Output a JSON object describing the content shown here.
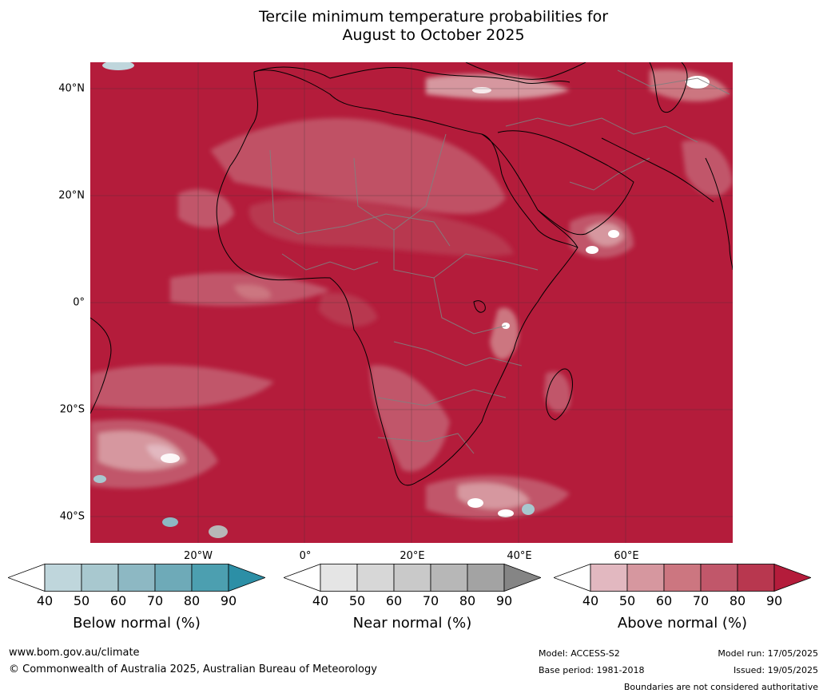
{
  "title_line1": "Tercile minimum temperature probabilities for",
  "title_line2": "August to October 2025",
  "map": {
    "lat_labels": [
      {
        "text": "40°N",
        "lat": 40
      },
      {
        "text": "20°N",
        "lat": 20
      },
      {
        "text": "0°",
        "lat": 0
      },
      {
        "text": "20°S",
        "lat": -20
      },
      {
        "text": "40°S",
        "lat": -40
      }
    ],
    "lon_labels": [
      {
        "text": "20°W",
        "lon": -20
      },
      {
        "text": "0°",
        "lon": 0
      },
      {
        "text": "20°E",
        "lon": 20
      },
      {
        "text": "40°E",
        "lon": 40
      },
      {
        "text": "60°E",
        "lon": 60
      }
    ],
    "extent": {
      "lon_min": -40,
      "lon_max": 80,
      "lat_min": -45,
      "lat_max": 45
    },
    "dominant_category": "above-normal-90"
  },
  "colorbars": [
    {
      "id": "below",
      "label": "Below normal (%)",
      "ticks": [
        "40",
        "50",
        "60",
        "70",
        "80",
        "90"
      ],
      "colors": [
        "#bfd6dc",
        "#a8c8cf",
        "#8db8c3",
        "#6eaab8",
        "#4c9fb0"
      ],
      "over_color": "#2c8fa6"
    },
    {
      "id": "near",
      "label": "Near normal (%)",
      "ticks": [
        "40",
        "50",
        "60",
        "70",
        "80",
        "90"
      ],
      "colors": [
        "#e5e5e5",
        "#d7d7d7",
        "#c9c9c9",
        "#b7b7b7",
        "#a3a3a3"
      ],
      "over_color": "#858585"
    },
    {
      "id": "above",
      "label": "Above normal (%)",
      "ticks": [
        "40",
        "50",
        "60",
        "70",
        "80",
        "90"
      ],
      "colors": [
        "#e2b8c0",
        "#d6979f",
        "#cc7680",
        "#c1576a",
        "#b8374f"
      ],
      "over_color": "#b41c3b"
    }
  ],
  "footer": {
    "website": "www.bom.gov.au/climate",
    "copyright": "© Commonwealth of Australia 2025, Australian Bureau of Meteorology",
    "model": "Model: ACCESS-S2",
    "base_period": "Base period: 1981-2018",
    "model_run": "Model run: 17/05/2025",
    "issued": "Issued: 19/05/2025",
    "disclaimer": "Boundaries are not considered authoritative"
  }
}
